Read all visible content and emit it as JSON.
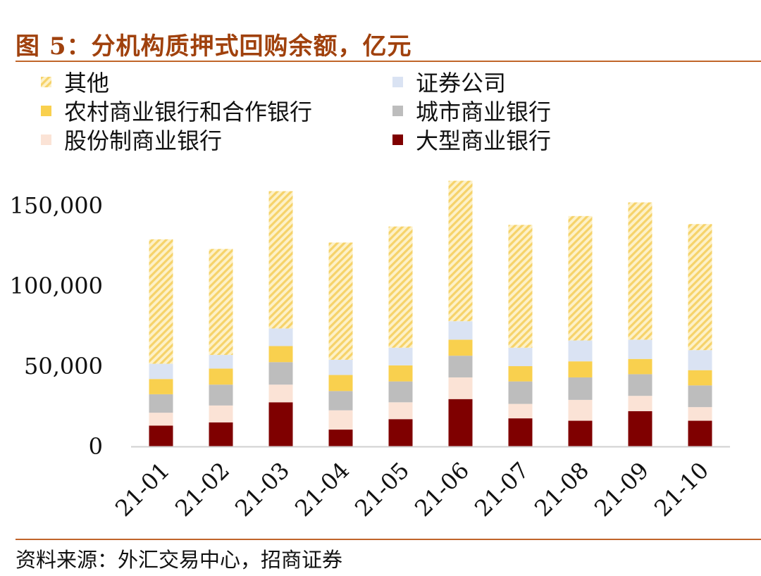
{
  "title": "图 5：分机构质押式回购余额，亿元",
  "source": "资料来源：外汇交易中心，招商证券",
  "legend": [
    {
      "label": "其他",
      "series": 5
    },
    {
      "label": "证券公司",
      "series": 4
    },
    {
      "label": "农村商业银行和合作银行",
      "series": 3
    },
    {
      "label": "城市商业银行",
      "series": 2
    },
    {
      "label": "股份制商业银行",
      "series": 1
    },
    {
      "label": "大型商业银行",
      "series": 0
    }
  ],
  "chart_data": {
    "type": "bar",
    "stacked": true,
    "title": "分机构质押式回购余额，亿元",
    "categories": [
      "21-01",
      "21-02",
      "21-03",
      "21-04",
      "21-05",
      "21-06",
      "21-07",
      "21-08",
      "21-09",
      "21-10"
    ],
    "ylim": [
      0,
      160000
    ],
    "yticks": [
      0,
      50000,
      100000,
      150000
    ],
    "ytick_labels": [
      "0",
      "50,000",
      "100,000",
      "150,000"
    ],
    "series": [
      {
        "name": "大型商业银行",
        "color": "#7f0000",
        "pattern": "solid",
        "values": [
          13000,
          15000,
          27500,
          10500,
          17000,
          29500,
          17500,
          16000,
          22000,
          16000
        ]
      },
      {
        "name": "股份制商业银行",
        "color": "#fbe3d6",
        "pattern": "solid",
        "values": [
          8000,
          10500,
          11000,
          12000,
          10500,
          13500,
          9000,
          13000,
          9500,
          8500
        ]
      },
      {
        "name": "城市商业银行",
        "color": "#bdbdbd",
        "pattern": "solid",
        "values": [
          11500,
          13000,
          14000,
          12000,
          13000,
          13500,
          14000,
          14000,
          13500,
          13500
        ]
      },
      {
        "name": "农村商业银行和合作银行",
        "color": "#f9d04e",
        "pattern": "solid",
        "values": [
          9500,
          10000,
          10000,
          10000,
          10000,
          10000,
          9500,
          10000,
          9500,
          9500
        ]
      },
      {
        "name": "证券公司",
        "color": "#dae3f3",
        "pattern": "solid",
        "values": [
          9500,
          8500,
          11000,
          9500,
          11000,
          11500,
          11500,
          13000,
          12000,
          12500
        ]
      },
      {
        "name": "其他",
        "color": "#f9d04e",
        "pattern": "hatch",
        "values": [
          77500,
          66000,
          85500,
          73000,
          75500,
          87500,
          76500,
          77500,
          85500,
          78500
        ]
      }
    ]
  }
}
